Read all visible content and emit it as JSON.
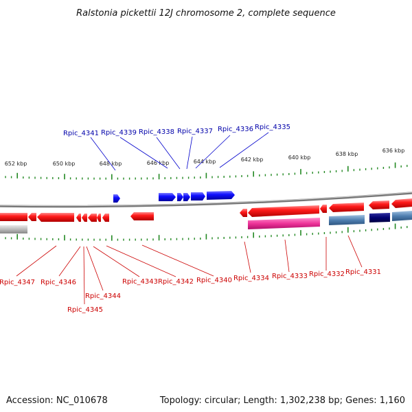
{
  "title": "Ralstonia pickettii 12J chromosome 2, complete sequence",
  "footer": {
    "accession": "Accession: NC_010678",
    "summary": "Topology: circular; Length: 1,302,238 bp; Genes: 1,160"
  },
  "colors": {
    "forward_gene": "#0000ee",
    "reverse_gene": "#ee1111",
    "forward_label": "#0000aa",
    "reverse_label": "#cc0000",
    "tick": "#228822",
    "backbone": "#888888",
    "pink_feature": "#ee3399",
    "steel_feature": "#4f7fb0",
    "navy_feature": "#000066",
    "gray_feature": "#bbbbbb"
  },
  "scale_labels": [
    "652 kbp",
    "650 kbp",
    "648 kbp",
    "646 kbp",
    "644 kbp",
    "642 kbp",
    "640 kbp",
    "638 kbp",
    "636 kbp"
  ],
  "forward_labels": [
    "Rpic_4341",
    "Rpic_4339",
    "Rpic_4338",
    "Rpic_4337",
    "Rpic_4336",
    "Rpic_4335"
  ],
  "reverse_labels": [
    "Rpic_4347",
    "Rpic_4346",
    "Rpic_4345",
    "Rpic_4344",
    "Rpic_4343",
    "Rpic_4342",
    "Rpic_4340",
    "Rpic_4334",
    "Rpic_4333",
    "Rpic_4332",
    "Rpic_4331"
  ]
}
